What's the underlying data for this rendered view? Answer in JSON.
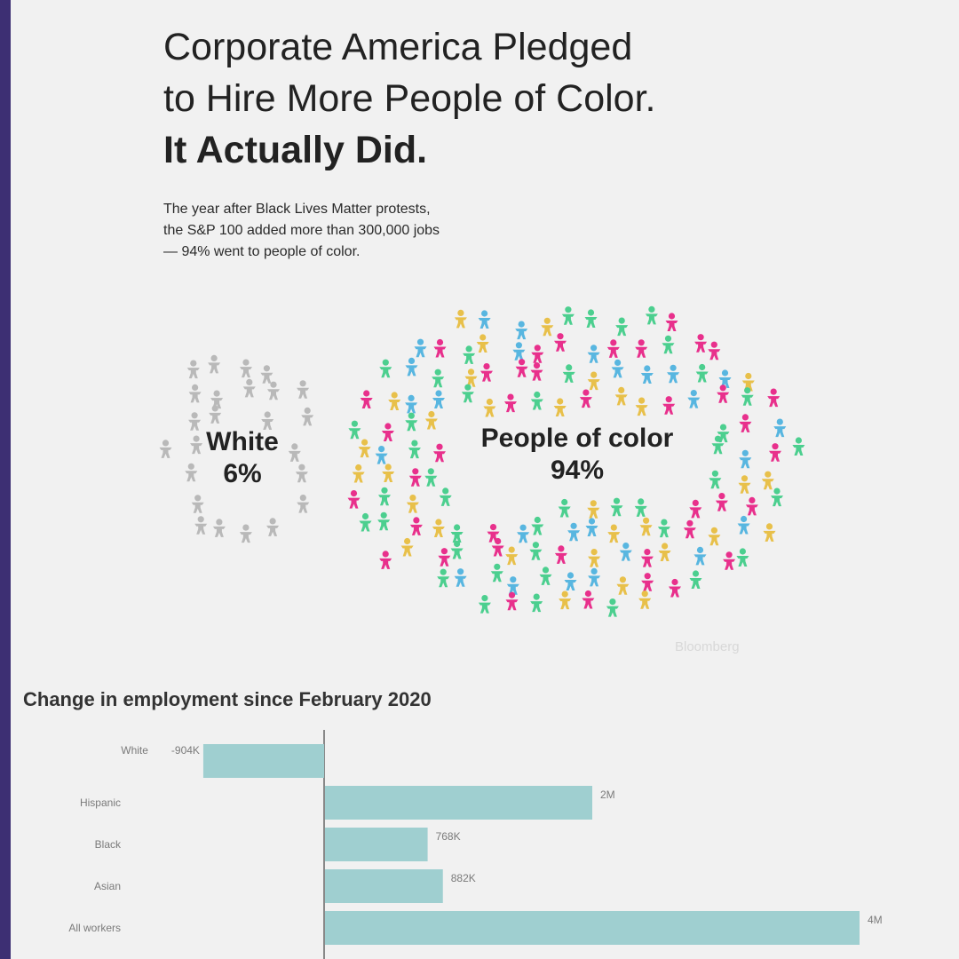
{
  "headline": {
    "line1": "Corporate America Pledged",
    "line2": "to Hire More People of Color.",
    "line3": "It Actually Did."
  },
  "subtitle": {
    "line1": "The year after Black Lives Matter protests,",
    "line2": "the S&P 100 added more than 300,000 jobs",
    "line3": "— 94% went to people of color."
  },
  "colors": {
    "white_people": "#b9b9b9",
    "poc_palette": [
      "#e8308c",
      "#4ccf8f",
      "#e8c04a",
      "#58b6e0"
    ],
    "bar": "#9fcfd0",
    "axis": "#666666"
  },
  "icon": "person-icon",
  "groups": {
    "white": {
      "name": "White",
      "pct_label": "6%",
      "share": 6
    },
    "poc": {
      "name": "People of color",
      "pct_label": "94%",
      "share": 94
    }
  },
  "source": "Bloomberg",
  "chart_data": {
    "type": "bar",
    "orientation": "horizontal",
    "title": "Change in employment since February 2020",
    "categories": [
      "White",
      "Hispanic",
      "Black",
      "Asian",
      "All workers"
    ],
    "values": [
      -904000,
      2000000,
      768000,
      882000,
      4000000
    ],
    "data_labels": [
      "-904K",
      "2M",
      "768K",
      "882K",
      "4M"
    ],
    "xlim": [
      -1000000,
      4000000
    ],
    "grid": false
  }
}
